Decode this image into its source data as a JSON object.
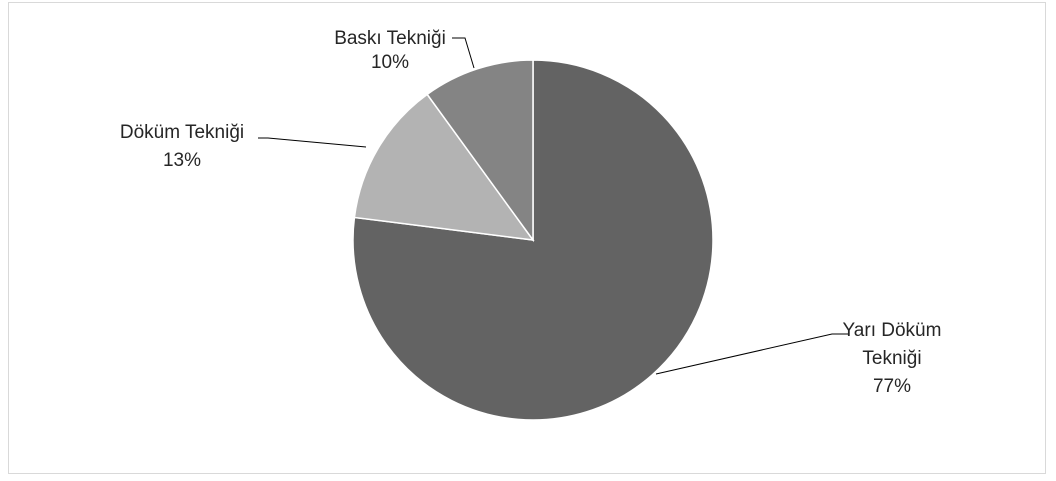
{
  "chart_data": {
    "type": "pie",
    "title": "",
    "slices": [
      {
        "label": "Yarı Döküm Tekniği",
        "label_lines": [
          "Yarı Döküm",
          "Tekniği"
        ],
        "value": 77,
        "value_label": "77%",
        "color": "#636363"
      },
      {
        "label": "Döküm Tekniği",
        "label_lines": [
          "Döküm Tekniği"
        ],
        "value": 13,
        "value_label": "13%",
        "color": "#b3b3b3"
      },
      {
        "label": "Baskı Tekniği",
        "label_lines": [
          "Baskı Tekniği"
        ],
        "value": 10,
        "value_label": "10%",
        "color": "#848484"
      }
    ],
    "start_angle_deg": 0,
    "direction": "clockwise",
    "legend": "none",
    "slice_border_color": "#ffffff",
    "leader_line_color": "#000000"
  }
}
